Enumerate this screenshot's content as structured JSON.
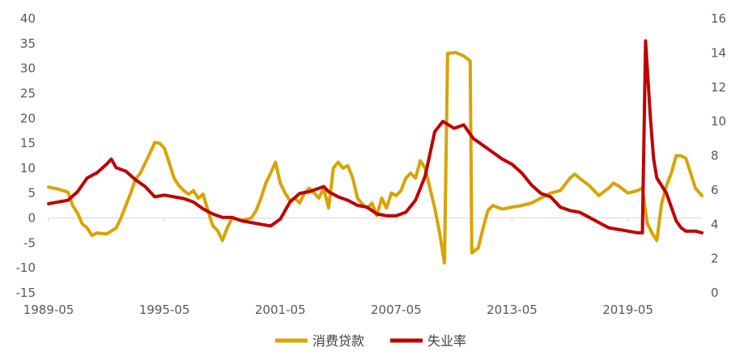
{
  "chart_data": {
    "type": "line",
    "x_ticks": [
      "1989-05",
      "1995-05",
      "2001-05",
      "2007-05",
      "2013-05",
      "2019-05"
    ],
    "x_range": [
      "1989-05",
      "2023-03"
    ],
    "y_left": {
      "ticks": [
        "40",
        "35",
        "30",
        "25",
        "20",
        "15",
        "10",
        "5",
        "0",
        "-5",
        "-10",
        "-15"
      ],
      "range": [
        -15,
        40
      ]
    },
    "y_right": {
      "ticks": [
        "16",
        "14",
        "12",
        "10",
        "8",
        "6",
        "4",
        "2",
        "0"
      ],
      "range": [
        0,
        16
      ]
    },
    "grid": false,
    "zero_line": true,
    "legend_position": "bottom-center",
    "series": [
      {
        "name": "消费贷款",
        "axis": "left",
        "color": "#D9A300",
        "points": [
          [
            "1989-05",
            6.2
          ],
          [
            "1989-11",
            5.8
          ],
          [
            "1990-05",
            5.2
          ],
          [
            "1990-08",
            2.5
          ],
          [
            "1990-11",
            1.0
          ],
          [
            "1991-02",
            -1.2
          ],
          [
            "1991-05",
            -2.0
          ],
          [
            "1991-08",
            -3.5
          ],
          [
            "1991-11",
            -3.0
          ],
          [
            "1992-05",
            -3.2
          ],
          [
            "1992-11",
            -2.0
          ],
          [
            "1993-02",
            0.0
          ],
          [
            "1993-05",
            2.5
          ],
          [
            "1993-08",
            5.0
          ],
          [
            "1993-11",
            7.8
          ],
          [
            "1994-02",
            9.0
          ],
          [
            "1994-05",
            11.0
          ],
          [
            "1994-08",
            13.0
          ],
          [
            "1994-11",
            15.2
          ],
          [
            "1995-02",
            15.0
          ],
          [
            "1995-05",
            14.0
          ],
          [
            "1995-08",
            11.0
          ],
          [
            "1995-11",
            8.0
          ],
          [
            "1996-02",
            6.5
          ],
          [
            "1996-05",
            5.5
          ],
          [
            "1996-08",
            4.8
          ],
          [
            "1996-11",
            5.5
          ],
          [
            "1997-02",
            4.0
          ],
          [
            "1997-05",
            4.8
          ],
          [
            "1997-08",
            1.5
          ],
          [
            "1997-11",
            -1.5
          ],
          [
            "1998-02",
            -2.5
          ],
          [
            "1998-05",
            -4.5
          ],
          [
            "1998-08",
            -2.0
          ],
          [
            "1998-11",
            0.0
          ],
          [
            "1999-05",
            -0.5
          ],
          [
            "1999-11",
            0.0
          ],
          [
            "2000-02",
            1.5
          ],
          [
            "2000-05",
            4.0
          ],
          [
            "2000-08",
            7.0
          ],
          [
            "2000-11",
            9.0
          ],
          [
            "2001-02",
            11.2
          ],
          [
            "2001-05",
            7.0
          ],
          [
            "2001-08",
            5.0
          ],
          [
            "2001-11",
            3.5
          ],
          [
            "2002-02",
            4.0
          ],
          [
            "2002-05",
            3.0
          ],
          [
            "2002-08",
            5.0
          ],
          [
            "2002-11",
            6.0
          ],
          [
            "2003-02",
            5.0
          ],
          [
            "2003-05",
            4.0
          ],
          [
            "2003-08",
            6.0
          ],
          [
            "2003-11",
            2.0
          ],
          [
            "2004-02",
            10.0
          ],
          [
            "2004-05",
            11.2
          ],
          [
            "2004-08",
            10.0
          ],
          [
            "2004-11",
            10.5
          ],
          [
            "2005-02",
            8.0
          ],
          [
            "2005-05",
            4.0
          ],
          [
            "2005-08",
            2.8
          ],
          [
            "2005-11",
            2.0
          ],
          [
            "2006-02",
            3.0
          ],
          [
            "2006-05",
            0.5
          ],
          [
            "2006-08",
            4.0
          ],
          [
            "2006-11",
            2.0
          ],
          [
            "2007-02",
            5.0
          ],
          [
            "2007-05",
            4.5
          ],
          [
            "2007-08",
            5.5
          ],
          [
            "2007-11",
            8.0
          ],
          [
            "2008-02",
            9.0
          ],
          [
            "2008-05",
            8.0
          ],
          [
            "2008-08",
            11.5
          ],
          [
            "2008-11",
            10.0
          ],
          [
            "2009-02",
            6.0
          ],
          [
            "2009-05",
            2.0
          ],
          [
            "2009-08",
            -3.0
          ],
          [
            "2009-11",
            -9.0
          ],
          [
            "2010-01",
            33.0
          ],
          [
            "2010-06",
            33.2
          ],
          [
            "2010-11",
            32.5
          ],
          [
            "2011-03",
            31.5
          ],
          [
            "2011-04",
            -7.0
          ],
          [
            "2011-08",
            -6.0
          ],
          [
            "2011-11",
            -2.0
          ],
          [
            "2012-02",
            1.5
          ],
          [
            "2012-05",
            2.5
          ],
          [
            "2012-11",
            1.8
          ],
          [
            "2013-05",
            2.2
          ],
          [
            "2013-11",
            2.5
          ],
          [
            "2014-05",
            3.0
          ],
          [
            "2014-11",
            4.0
          ],
          [
            "2015-05",
            5.0
          ],
          [
            "2015-11",
            5.5
          ],
          [
            "2016-05",
            8.0
          ],
          [
            "2016-08",
            8.8
          ],
          [
            "2016-11",
            8.0
          ],
          [
            "2017-05",
            6.5
          ],
          [
            "2017-11",
            4.5
          ],
          [
            "2018-05",
            6.0
          ],
          [
            "2018-08",
            7.0
          ],
          [
            "2018-11",
            6.5
          ],
          [
            "2019-05",
            5.0
          ],
          [
            "2019-11",
            5.5
          ],
          [
            "2020-02",
            6.0
          ],
          [
            "2020-05",
            -1.0
          ],
          [
            "2020-08",
            -3.0
          ],
          [
            "2020-11",
            -4.5
          ],
          [
            "2021-02",
            3.0
          ],
          [
            "2021-05",
            6.5
          ],
          [
            "2021-08",
            9.0
          ],
          [
            "2021-11",
            12.5
          ],
          [
            "2022-02",
            12.5
          ],
          [
            "2022-05",
            12.0
          ],
          [
            "2022-08",
            9.0
          ],
          [
            "2022-11",
            6.0
          ],
          [
            "2023-03",
            4.5
          ]
        ]
      },
      {
        "name": "失业率",
        "axis": "right",
        "color": "#C00000",
        "points": [
          [
            "1989-05",
            5.2
          ],
          [
            "1989-11",
            5.3
          ],
          [
            "1990-05",
            5.4
          ],
          [
            "1990-11",
            5.9
          ],
          [
            "1991-05",
            6.7
          ],
          [
            "1991-11",
            7.0
          ],
          [
            "1992-05",
            7.5
          ],
          [
            "1992-08",
            7.8
          ],
          [
            "1992-11",
            7.3
          ],
          [
            "1993-05",
            7.1
          ],
          [
            "1993-11",
            6.6
          ],
          [
            "1994-05",
            6.2
          ],
          [
            "1994-11",
            5.6
          ],
          [
            "1995-05",
            5.7
          ],
          [
            "1995-11",
            5.6
          ],
          [
            "1996-05",
            5.5
          ],
          [
            "1996-11",
            5.3
          ],
          [
            "1997-05",
            4.9
          ],
          [
            "1997-11",
            4.6
          ],
          [
            "1998-05",
            4.4
          ],
          [
            "1998-11",
            4.4
          ],
          [
            "1999-05",
            4.2
          ],
          [
            "1999-11",
            4.1
          ],
          [
            "2000-05",
            4.0
          ],
          [
            "2000-11",
            3.9
          ],
          [
            "2001-05",
            4.3
          ],
          [
            "2001-11",
            5.3
          ],
          [
            "2002-05",
            5.8
          ],
          [
            "2002-11",
            5.9
          ],
          [
            "2003-05",
            6.1
          ],
          [
            "2003-08",
            6.2
          ],
          [
            "2003-11",
            5.9
          ],
          [
            "2004-05",
            5.6
          ],
          [
            "2004-11",
            5.4
          ],
          [
            "2005-05",
            5.1
          ],
          [
            "2005-11",
            5.0
          ],
          [
            "2006-05",
            4.6
          ],
          [
            "2006-11",
            4.5
          ],
          [
            "2007-05",
            4.5
          ],
          [
            "2007-11",
            4.7
          ],
          [
            "2008-05",
            5.4
          ],
          [
            "2008-11",
            6.8
          ],
          [
            "2009-05",
            9.4
          ],
          [
            "2009-10",
            10.0
          ],
          [
            "2010-05",
            9.6
          ],
          [
            "2010-11",
            9.8
          ],
          [
            "2011-05",
            9.0
          ],
          [
            "2011-11",
            8.6
          ],
          [
            "2012-05",
            8.2
          ],
          [
            "2012-11",
            7.8
          ],
          [
            "2013-05",
            7.5
          ],
          [
            "2013-11",
            7.0
          ],
          [
            "2014-05",
            6.3
          ],
          [
            "2014-11",
            5.8
          ],
          [
            "2015-05",
            5.6
          ],
          [
            "2015-11",
            5.0
          ],
          [
            "2016-05",
            4.8
          ],
          [
            "2016-11",
            4.7
          ],
          [
            "2017-05",
            4.4
          ],
          [
            "2017-11",
            4.1
          ],
          [
            "2018-05",
            3.8
          ],
          [
            "2018-11",
            3.7
          ],
          [
            "2019-05",
            3.6
          ],
          [
            "2019-11",
            3.5
          ],
          [
            "2020-02",
            3.5
          ],
          [
            "2020-04",
            14.7
          ],
          [
            "2020-05",
            13.2
          ],
          [
            "2020-07",
            10.2
          ],
          [
            "2020-09",
            7.8
          ],
          [
            "2020-11",
            6.7
          ],
          [
            "2021-05",
            5.8
          ],
          [
            "2021-11",
            4.2
          ],
          [
            "2022-02",
            3.8
          ],
          [
            "2022-05",
            3.6
          ],
          [
            "2022-11",
            3.6
          ],
          [
            "2023-03",
            3.5
          ]
        ]
      }
    ]
  },
  "legend": {
    "items": [
      {
        "label": "消费贷款",
        "color": "#D9A300"
      },
      {
        "label": "失业率",
        "color": "#C00000"
      }
    ]
  }
}
